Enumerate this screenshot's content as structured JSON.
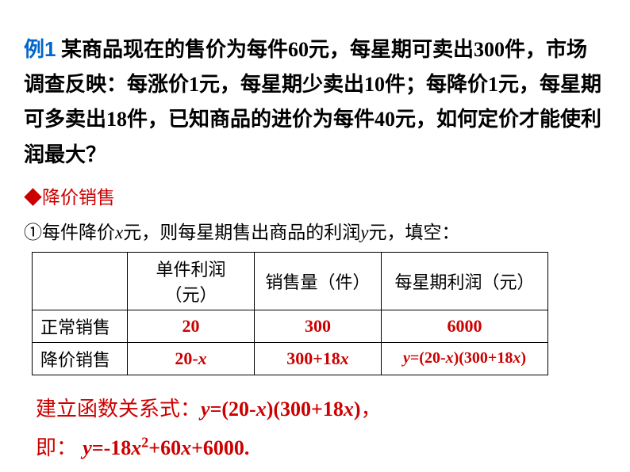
{
  "example": {
    "label": "例1",
    "text_parts": {
      "p1": "某商品现在的售价为每件",
      "n1": "60",
      "p2": "元，每星期可卖出",
      "n2": "300",
      "p3": "件，市场调查反映：每涨价",
      "n3": "1",
      "p4": "元，每星期少卖出",
      "n4": "10",
      "p5": "件；每降价",
      "n5": "1",
      "p6": "元，每星期可多卖出",
      "n6": "18",
      "p7": "件，已知商品的进价为每件",
      "n7": "40",
      "p8": "元，如何定价才能使利润最大？"
    }
  },
  "section": {
    "header": "◆降价销售",
    "substep_parts": {
      "p1": "①每件降价",
      "v1": "x",
      "p2": "元，则每星期售出商品的利润",
      "v2": "y",
      "p3": "元，填空："
    }
  },
  "table": {
    "headers": {
      "h1": "",
      "h2": "单件利润（元）",
      "h3": "销售量（件）",
      "h4": "每星期利润（元）"
    },
    "row1": {
      "label": "正常销售",
      "c1": "20",
      "c2": "300",
      "c3": "6000"
    },
    "row2": {
      "label": "降价销售",
      "c1_a": "20-",
      "c1_b": "x",
      "c2_a": "300+18",
      "c2_b": "x",
      "c3_a": "y",
      "c3_b": "=(20-",
      "c3_c": "x",
      "c3_d": ")(300+18",
      "c3_e": "x",
      "c3_f": ")"
    }
  },
  "formula": {
    "line1_parts": {
      "label": "建立函数关系式：",
      "v1": "y",
      "eq": "=(20-",
      "v2": "x",
      "mid": ")(300+18",
      "v3": "x",
      "end": ")",
      "comma": "，"
    },
    "line2_parts": {
      "label": "即：",
      "v1": "y",
      "eq": "=-18",
      "v2": "x",
      "sup": "2",
      "mid": "+60",
      "v3": "x",
      "end": "+6000.",
      "space": " "
    }
  },
  "colors": {
    "blue": "#0066cc",
    "red": "#cc0000",
    "black": "#000000",
    "background": "#ffffff",
    "border": "#000000"
  }
}
